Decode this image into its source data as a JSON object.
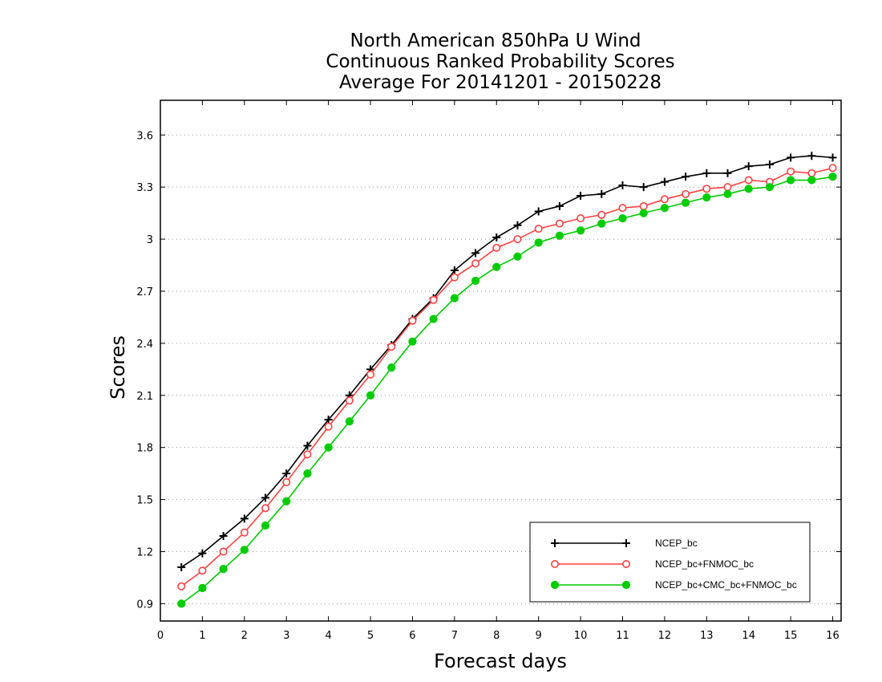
{
  "chart_data": {
    "type": "line",
    "title": [
      "North American 850hPa U Wind",
      "Continuous Ranked Probability Scores",
      "Average For 20141201 - 20150228"
    ],
    "xlabel": "Forecast days",
    "ylabel": "Scores",
    "xlim": [
      0,
      16.2
    ],
    "ylim": [
      0.8,
      3.8
    ],
    "xticks": [
      0,
      1,
      2,
      3,
      4,
      5,
      6,
      7,
      8,
      9,
      10,
      11,
      12,
      13,
      14,
      15,
      16
    ],
    "yticks": [
      0.9,
      1.2,
      1.5,
      1.8,
      2.1,
      2.4,
      2.7,
      3,
      3.3,
      3.6
    ],
    "ytick_labels": [
      "0.9",
      "1.2",
      "1.5",
      "1.8",
      "2.1",
      "2.4",
      "2.7",
      "3",
      "3.3",
      "3.6"
    ],
    "grid": "horizontal dotted",
    "legend_position": "bottom-right",
    "x": [
      0.5,
      1.0,
      1.5,
      2.0,
      2.5,
      3.0,
      3.5,
      4.0,
      4.5,
      5.0,
      5.5,
      6.0,
      6.5,
      7.0,
      7.5,
      8.0,
      8.5,
      9.0,
      9.5,
      10.0,
      10.5,
      11.0,
      11.5,
      12.0,
      12.5,
      13.0,
      13.5,
      14.0,
      14.5,
      15.0,
      15.5,
      16.0
    ],
    "series": [
      {
        "name": "NCEP_bc",
        "color": "#000000",
        "marker": "plus",
        "values": [
          1.11,
          1.19,
          1.29,
          1.39,
          1.51,
          1.65,
          1.81,
          1.96,
          2.1,
          2.25,
          2.39,
          2.54,
          2.66,
          2.82,
          2.92,
          3.01,
          3.08,
          3.16,
          3.19,
          3.25,
          3.26,
          3.31,
          3.3,
          3.33,
          3.36,
          3.38,
          3.38,
          3.42,
          3.43,
          3.47,
          3.48,
          3.47
        ]
      },
      {
        "name": "NCEP_bc+FNMOC_bc",
        "color": "#ff4040",
        "marker": "open-circle",
        "values": [
          1.0,
          1.09,
          1.2,
          1.31,
          1.45,
          1.6,
          1.76,
          1.92,
          2.07,
          2.22,
          2.38,
          2.53,
          2.65,
          2.78,
          2.86,
          2.95,
          3.0,
          3.06,
          3.09,
          3.12,
          3.14,
          3.18,
          3.19,
          3.23,
          3.26,
          3.29,
          3.3,
          3.34,
          3.33,
          3.39,
          3.38,
          3.41
        ]
      },
      {
        "name": "NCEP_bc+CMC_bc+FNMOC_bc",
        "color": "#00cc00",
        "marker": "filled-circle",
        "values": [
          0.9,
          0.99,
          1.1,
          1.21,
          1.35,
          1.49,
          1.65,
          1.8,
          1.95,
          2.1,
          2.26,
          2.41,
          2.54,
          2.66,
          2.76,
          2.84,
          2.9,
          2.98,
          3.02,
          3.05,
          3.09,
          3.12,
          3.15,
          3.18,
          3.21,
          3.24,
          3.26,
          3.29,
          3.3,
          3.34,
          3.34,
          3.36
        ]
      }
    ]
  }
}
